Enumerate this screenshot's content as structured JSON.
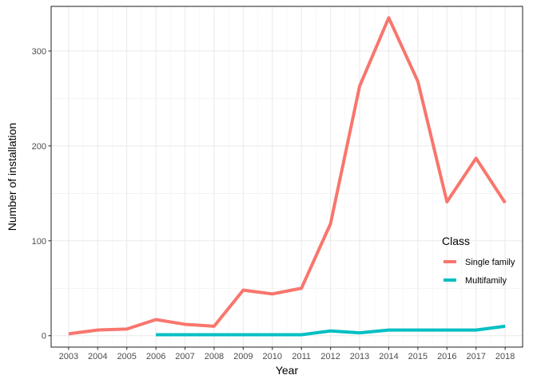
{
  "chart_data": {
    "type": "line",
    "xlabel": "Year",
    "ylabel": "Number of installation",
    "x": [
      2003,
      2004,
      2005,
      2006,
      2007,
      2008,
      2009,
      2010,
      2011,
      2012,
      2013,
      2014,
      2015,
      2016,
      2017,
      2018
    ],
    "xlim": [
      2002.4,
      2018.6
    ],
    "ylim": [
      -12,
      347
    ],
    "yticks": [
      0,
      100,
      200,
      300
    ],
    "grid": true,
    "legend": {
      "title": "Class",
      "position": "right"
    },
    "series": [
      {
        "name": "Single family",
        "color": "#F8766D",
        "x": [
          2003,
          2004,
          2005,
          2006,
          2007,
          2008,
          2009,
          2010,
          2011,
          2012,
          2013,
          2014,
          2015,
          2016,
          2017,
          2018
        ],
        "values": [
          2,
          6,
          7,
          17,
          12,
          10,
          48,
          44,
          50,
          118,
          263,
          335,
          268,
          141,
          187,
          140
        ]
      },
      {
        "name": "Multifamily",
        "color": "#00BFC4",
        "x": [
          2006,
          2007,
          2008,
          2009,
          2010,
          2011,
          2012,
          2013,
          2014,
          2015,
          2016,
          2017,
          2018
        ],
        "values": [
          1,
          1,
          1,
          1,
          1,
          1,
          5,
          3,
          6,
          6,
          6,
          6,
          10
        ]
      }
    ]
  }
}
